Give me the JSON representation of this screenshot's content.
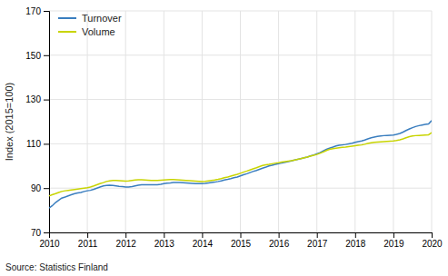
{
  "chart_data": {
    "type": "line",
    "ylabel": "Index (2015=100)",
    "source": "Source: Statistics Finland",
    "x": [
      2010.0,
      2010.08,
      2010.17,
      2010.25,
      2010.33,
      2010.42,
      2010.5,
      2010.58,
      2010.67,
      2010.75,
      2010.83,
      2010.92,
      2011.0,
      2011.08,
      2011.17,
      2011.25,
      2011.33,
      2011.42,
      2011.5,
      2011.58,
      2011.67,
      2011.75,
      2011.83,
      2011.92,
      2012.0,
      2012.08,
      2012.17,
      2012.25,
      2012.33,
      2012.42,
      2012.5,
      2012.58,
      2012.67,
      2012.75,
      2012.83,
      2012.92,
      2013.0,
      2013.08,
      2013.17,
      2013.25,
      2013.33,
      2013.42,
      2013.5,
      2013.58,
      2013.67,
      2013.75,
      2013.83,
      2013.92,
      2014.0,
      2014.08,
      2014.17,
      2014.25,
      2014.33,
      2014.42,
      2014.5,
      2014.58,
      2014.67,
      2014.75,
      2014.83,
      2014.92,
      2015.0,
      2015.08,
      2015.17,
      2015.25,
      2015.33,
      2015.42,
      2015.5,
      2015.58,
      2015.67,
      2015.75,
      2015.83,
      2015.92,
      2016.0,
      2016.08,
      2016.17,
      2016.25,
      2016.33,
      2016.42,
      2016.5,
      2016.58,
      2016.67,
      2016.75,
      2016.83,
      2016.92,
      2017.0,
      2017.08,
      2017.17,
      2017.25,
      2017.33,
      2017.42,
      2017.5,
      2017.58,
      2017.67,
      2017.75,
      2017.83,
      2017.92,
      2018.0,
      2018.08,
      2018.17,
      2018.25,
      2018.33,
      2018.42,
      2018.5,
      2018.58,
      2018.67,
      2018.75,
      2018.83,
      2018.92,
      2019.0,
      2019.08,
      2019.17,
      2019.25,
      2019.33,
      2019.42,
      2019.5,
      2019.58,
      2019.67,
      2019.75,
      2019.83,
      2019.92,
      2020.0
    ],
    "series": [
      {
        "name": "Turnover",
        "color": "#3a7ebf",
        "values": [
          81,
          82,
          83.5,
          84.5,
          85.5,
          86,
          86.5,
          87,
          87.5,
          87.8,
          88,
          88.5,
          88.8,
          89,
          89.5,
          90,
          90.5,
          91,
          91.2,
          91.3,
          91.2,
          91,
          90.8,
          90.7,
          90.5,
          90.5,
          90.7,
          91,
          91.3,
          91.5,
          91.5,
          91.5,
          91.5,
          91.5,
          91.5,
          91.7,
          92,
          92.2,
          92.3,
          92.5,
          92.5,
          92.5,
          92.4,
          92.3,
          92.2,
          92.1,
          92.0,
          92.0,
          92.0,
          92.1,
          92.3,
          92.5,
          92.7,
          93.0,
          93.3,
          93.7,
          94.0,
          94.3,
          94.7,
          95.0,
          95.5,
          96.0,
          96.5,
          97.0,
          97.5,
          98.0,
          98.5,
          99.0,
          99.5,
          100.0,
          100.3,
          100.7,
          101.0,
          101.3,
          101.7,
          102.0,
          102.3,
          102.7,
          103.0,
          103.3,
          103.7,
          104.0,
          104.5,
          105.0,
          105.5,
          106.0,
          106.8,
          107.5,
          108.0,
          108.5,
          109.0,
          109.3,
          109.5,
          109.7,
          110.0,
          110.3,
          110.7,
          111.0,
          111.3,
          111.7,
          112.2,
          112.7,
          113.0,
          113.3,
          113.5,
          113.7,
          113.8,
          113.9,
          114.0,
          114.3,
          114.7,
          115.3,
          116.0,
          116.7,
          117.3,
          117.8,
          118.2,
          118.5,
          118.8,
          119.0,
          120.5
        ]
      },
      {
        "name": "Volume",
        "color": "#c8d400",
        "values": [
          86.5,
          87.0,
          87.5,
          88.0,
          88.5,
          88.8,
          89.0,
          89.2,
          89.4,
          89.6,
          89.8,
          90.0,
          90.2,
          90.5,
          91.0,
          91.5,
          92.0,
          92.5,
          93.0,
          93.3,
          93.5,
          93.5,
          93.4,
          93.3,
          93.2,
          93.3,
          93.5,
          93.7,
          93.8,
          93.8,
          93.7,
          93.6,
          93.5,
          93.5,
          93.5,
          93.6,
          93.7,
          93.8,
          93.9,
          93.9,
          93.8,
          93.7,
          93.6,
          93.5,
          93.4,
          93.3,
          93.2,
          93.1,
          93.0,
          93.1,
          93.3,
          93.5,
          93.7,
          94.0,
          94.3,
          94.7,
          95.0,
          95.4,
          95.8,
          96.2,
          96.7,
          97.2,
          97.7,
          98.2,
          98.7,
          99.2,
          99.7,
          100.2,
          100.5,
          100.7,
          101.0,
          101.3,
          101.5,
          101.8,
          102.0,
          102.2,
          102.4,
          102.7,
          103.0,
          103.3,
          103.7,
          104.0,
          104.4,
          104.8,
          105.2,
          105.7,
          106.3,
          107.0,
          107.5,
          107.8,
          108.0,
          108.2,
          108.4,
          108.5,
          108.7,
          108.9,
          109.1,
          109.3,
          109.5,
          109.8,
          110.2,
          110.5,
          110.7,
          110.8,
          110.9,
          111.0,
          111.1,
          111.2,
          111.3,
          111.5,
          111.8,
          112.2,
          112.7,
          113.2,
          113.5,
          113.7,
          113.8,
          113.9,
          114.0,
          114.1,
          115.0
        ]
      }
    ],
    "xlim": [
      2010,
      2020
    ],
    "xticks": [
      2010,
      2011,
      2012,
      2013,
      2014,
      2015,
      2016,
      2017,
      2018,
      2019,
      2020
    ],
    "ylim": [
      70,
      170
    ],
    "yticks": [
      70,
      90,
      110,
      130,
      150,
      170
    ],
    "grid": true,
    "legend": "upper-left"
  }
}
